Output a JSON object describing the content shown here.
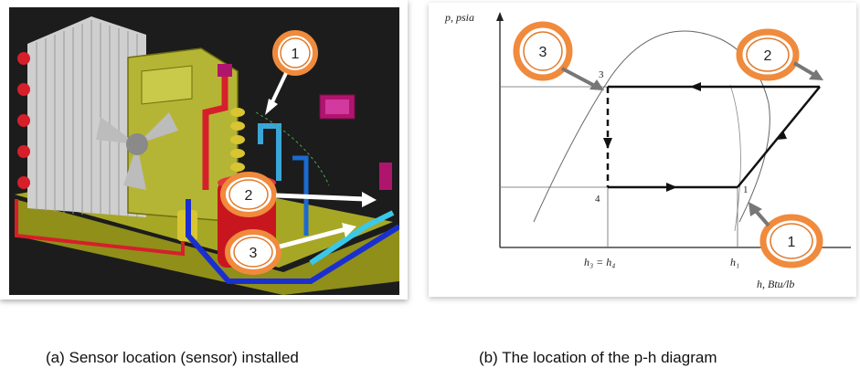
{
  "panel_a": {
    "callouts": [
      {
        "number": "1"
      },
      {
        "number": "2"
      },
      {
        "number": "3"
      }
    ]
  },
  "panel_b": {
    "y_axis_label": "p, psia",
    "x_axis_label": "h, Btu/lb",
    "x_tick_h34": "h₃ = h₄",
    "x_tick_h1": "h₁",
    "point_labels": {
      "p1": "1",
      "p3": "3",
      "p4": "4"
    },
    "callouts": [
      {
        "number": "3"
      },
      {
        "number": "2"
      },
      {
        "number": "1"
      }
    ]
  },
  "captions": {
    "a": "(a)  Sensor location (sensor) installed",
    "b": "(b) The location of the p-h diagram"
  },
  "colors": {
    "callout_ring": "#f08a3c",
    "callout_fill": "#ffffff",
    "cad_background": "#1c1c1c",
    "refrigerant_red": "#d61f2a",
    "refrigerant_blue": "#1b2fd1",
    "coil_magenta": "#b0156e",
    "body_olive": "#9a9a1f"
  }
}
